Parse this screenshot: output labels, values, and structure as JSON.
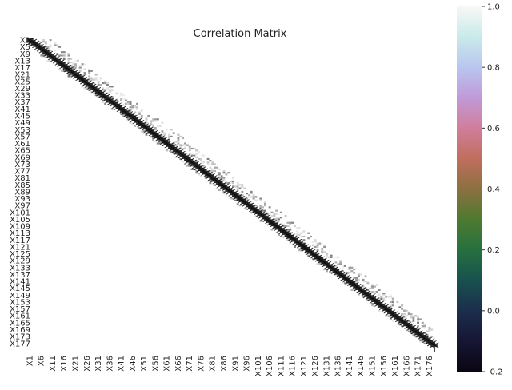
{
  "chart_data": {
    "type": "heatmap",
    "title": "Correlation Matrix",
    "variable_count": 178,
    "variable_prefix": "X",
    "diagonal_value": 1,
    "diagonal_annotation": "1",
    "off_diagonal_typical": "near 0 (rendered nearly white)",
    "x_tick_labels": [
      "X1",
      "X6",
      "X11",
      "X16",
      "X21",
      "X26",
      "X31",
      "X36",
      "X41",
      "X46",
      "X51",
      "X56",
      "X61",
      "X66",
      "X71",
      "X76",
      "X81",
      "X86",
      "X91",
      "X96",
      "X101",
      "X106",
      "X111",
      "X116",
      "X121",
      "X126",
      "X131",
      "X136",
      "X141",
      "X146",
      "X151",
      "X156",
      "X161",
      "X166",
      "X171",
      "X176"
    ],
    "y_tick_labels": [
      "X1",
      "X5",
      "X9",
      "X13",
      "X17",
      "X21",
      "X25",
      "X29",
      "X33",
      "X37",
      "X41",
      "X45",
      "X49",
      "X53",
      "X57",
      "X61",
      "X65",
      "X69",
      "X73",
      "X77",
      "X81",
      "X85",
      "X89",
      "X93",
      "X97",
      "X101",
      "X105",
      "X109",
      "X113",
      "X117",
      "X121",
      "X125",
      "X129",
      "X133",
      "X137",
      "X141",
      "X145",
      "X149",
      "X153",
      "X157",
      "X161",
      "X165",
      "X169",
      "X173",
      "X177"
    ],
    "colorbar": {
      "colormap": "cubehelix",
      "range": [
        -0.2,
        1.0
      ],
      "ticks": [
        "1.0",
        "0.8",
        "0.6",
        "0.4",
        "0.2",
        "0.0",
        "-0.2"
      ],
      "tick_values": [
        1.0,
        0.8,
        0.6,
        0.4,
        0.2,
        0.0,
        -0.2
      ]
    },
    "colors": {
      "diagonal": "#1a1a1a",
      "background": "#ffffff"
    }
  }
}
